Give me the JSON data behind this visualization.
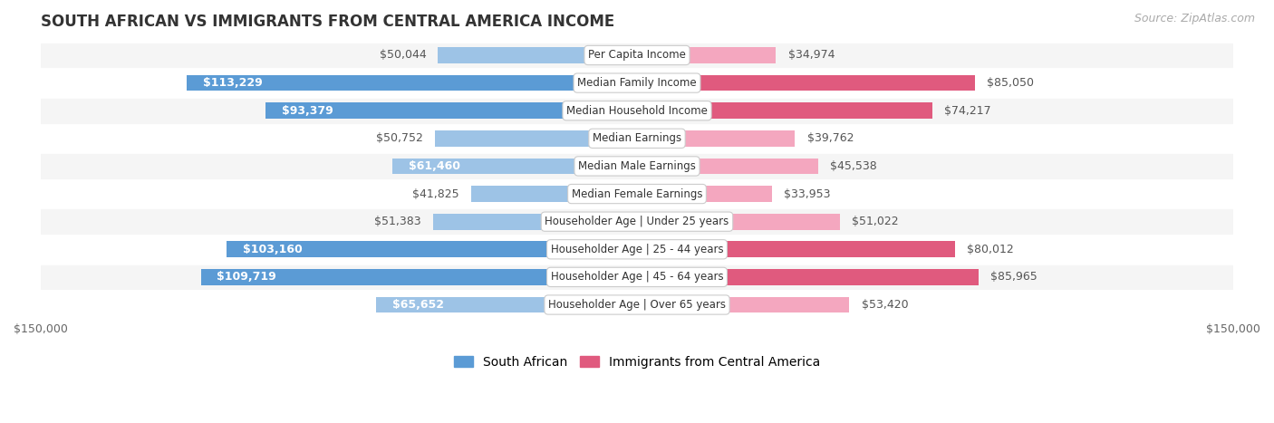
{
  "title": "SOUTH AFRICAN VS IMMIGRANTS FROM CENTRAL AMERICA INCOME",
  "source": "Source: ZipAtlas.com",
  "categories": [
    "Per Capita Income",
    "Median Family Income",
    "Median Household Income",
    "Median Earnings",
    "Median Male Earnings",
    "Median Female Earnings",
    "Householder Age | Under 25 years",
    "Householder Age | 25 - 44 years",
    "Householder Age | 45 - 64 years",
    "Householder Age | Over 65 years"
  ],
  "south_african": [
    50044,
    113229,
    93379,
    50752,
    61460,
    41825,
    51383,
    103160,
    109719,
    65652
  ],
  "central_america": [
    34974,
    85050,
    74217,
    39762,
    45538,
    33953,
    51022,
    80012,
    85965,
    53420
  ],
  "max_val": 150000,
  "bar_color_sa_large": "#5b9bd5",
  "bar_color_sa_small": "#9dc3e6",
  "bar_color_ca_large": "#e05a7e",
  "bar_color_ca_small": "#f4a7bf",
  "sa_large_threshold": 75000,
  "ca_large_threshold": 60000,
  "label_inside_color": "#ffffff",
  "label_outside_color": "#555555",
  "bg_color": "#ffffff",
  "row_bg_odd": "#f5f5f5",
  "row_bg_even": "#ffffff",
  "title_fontsize": 12,
  "source_fontsize": 9,
  "label_fontsize": 9,
  "cat_fontsize": 8.5,
  "legend_fontsize": 10,
  "axis_label_fontsize": 9,
  "inside_label_threshold": 55000
}
